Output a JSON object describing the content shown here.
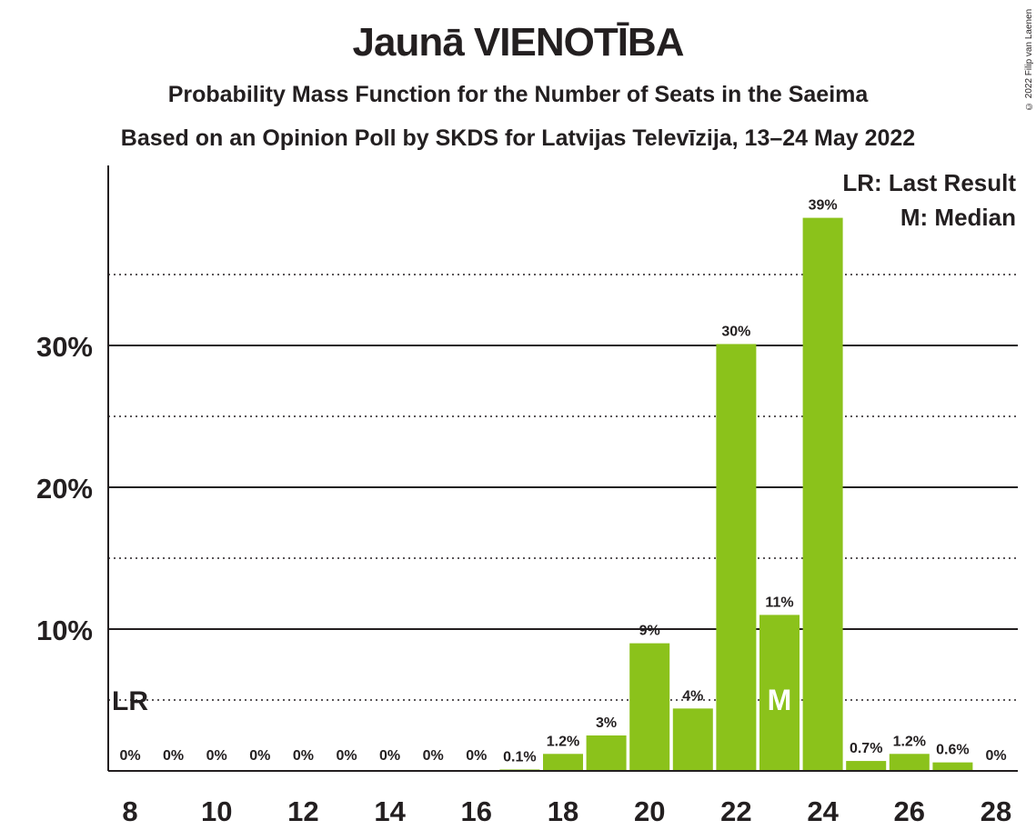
{
  "chart_data": {
    "type": "bar",
    "title": "Jaunā VIENOTĪBA",
    "subtitle": "Probability Mass Function for the Number of Seats in the Saeima",
    "subtitle2": "Based on an Opinion Poll by SKDS for Latvijas Televīzija, 13–24 May 2022",
    "copyright": "© 2022 Filip van Laenen",
    "bar_color": "#8bc21b",
    "x": [
      8,
      9,
      10,
      11,
      12,
      13,
      14,
      15,
      16,
      17,
      18,
      19,
      20,
      21,
      22,
      23,
      24,
      25,
      26,
      27,
      28
    ],
    "values": [
      0,
      0,
      0,
      0,
      0,
      0,
      0,
      0,
      0,
      0.1,
      1.2,
      2.5,
      9.0,
      4.4,
      30.1,
      11.0,
      39.0,
      0.7,
      1.2,
      0.6,
      0
    ],
    "labels": [
      "0%",
      "0%",
      "0%",
      "0%",
      "0%",
      "0%",
      "0%",
      "0%",
      "0%",
      "0.1%",
      "1.2%",
      "3%",
      "9%",
      "4%",
      "30%",
      "11%",
      "39%",
      "0.7%",
      "1.2%",
      "0.6%",
      "0%"
    ],
    "xticks": [
      "8",
      "10",
      "12",
      "14",
      "16",
      "18",
      "20",
      "22",
      "24",
      "26",
      "28"
    ],
    "xtick_values": [
      8,
      10,
      12,
      14,
      16,
      18,
      20,
      22,
      24,
      26,
      28
    ],
    "ytick_labels": [
      "10%",
      "20%",
      "30%"
    ],
    "ytick_values": [
      10,
      20,
      30
    ],
    "ylim": [
      0,
      42
    ],
    "last_result_seat": 8,
    "last_result_label": "LR",
    "median_seat": 23,
    "median_label": "M",
    "legend": [
      "LR: Last Result",
      "M: Median"
    ],
    "legend_placement": "top-right",
    "grid": "solid at 10% steps, dotted at 5% midpoints"
  }
}
